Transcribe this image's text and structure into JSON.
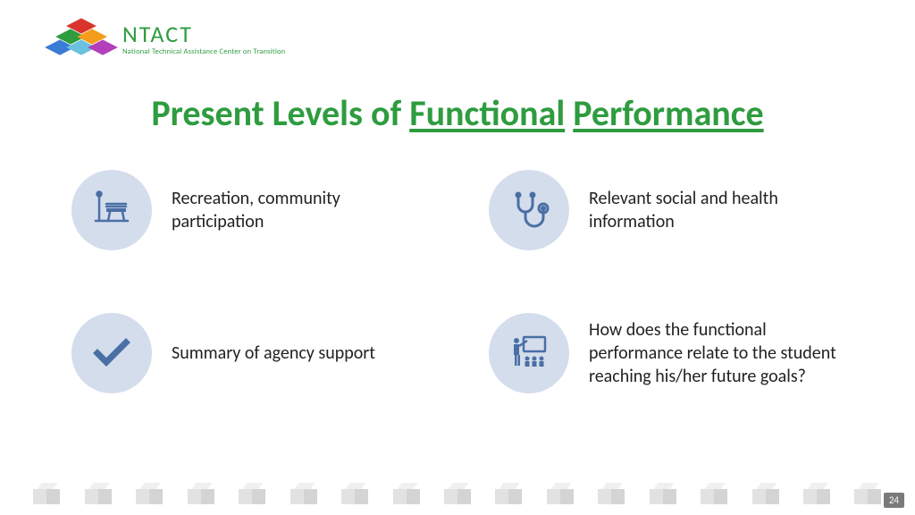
{
  "logo": {
    "title": "NTACT",
    "subtitle": "National Technical Assistance Center on Transition",
    "cube_colors": [
      "#d9342b",
      "#2e9c3f",
      "#f59c1a",
      "#3a7bd5",
      "#6bc1e0",
      "#b43fba"
    ]
  },
  "headline": {
    "prefix": "Present Levels of ",
    "u1": "Functional",
    "sep": " ",
    "u2": "Performance",
    "color": "#2e9c3f",
    "fontsize": 40
  },
  "items": [
    {
      "icon": "bench-icon",
      "text": "Recreation, community participation"
    },
    {
      "icon": "stethoscope-icon",
      "text": "Relevant social and health information"
    },
    {
      "icon": "check-icon",
      "text": "Summary of agency support"
    },
    {
      "icon": "class-icon",
      "text": "How does the functional performance relate to the student reaching his/her future goals?"
    }
  ],
  "style": {
    "circle_bg": "#d4ddec",
    "icon_color": "#4a6fa5",
    "body_text_color": "#222222",
    "body_fontsize": 20,
    "background": "#ffffff"
  },
  "footer": {
    "cube_count": 17,
    "cube_colors": {
      "top": "#f0f0f0",
      "left": "#e2e2e2",
      "right": "#d4d4d4"
    },
    "page_number": "24",
    "page_bg": "#7a7a7a",
    "page_fg": "#ffffff"
  }
}
